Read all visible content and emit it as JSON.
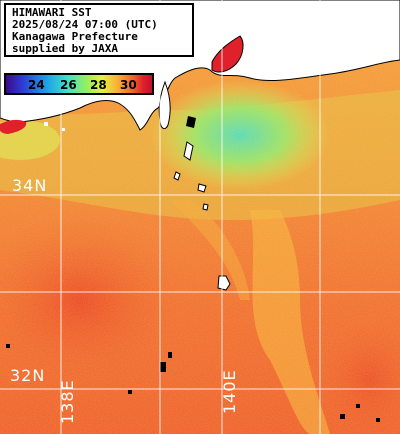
{
  "info": {
    "line1": "HIMAWARI SST",
    "line2": "2025/08/24 07:00 (UTC)",
    "line3": "Kanagawa Prefecture",
    "line4": "supplied by JAXA"
  },
  "colorbar": {
    "ticks": [
      "24",
      "26",
      "28",
      "30"
    ],
    "colors": [
      "#3a0a8a",
      "#2d3fd6",
      "#1fa0e8",
      "#3fe0c8",
      "#9af05a",
      "#e8f040",
      "#f6b23a",
      "#f26a2a",
      "#e0202a",
      "#c01030"
    ]
  },
  "grid": {
    "lat_labels": [
      "34N",
      "32N"
    ],
    "lon_labels": [
      "138E",
      "140E"
    ]
  },
  "palette": {
    "land": "#ffffff",
    "coastline": "#000000",
    "warm_sea": "#f06a2c",
    "mid_sea": "#f6b23a",
    "cool_sea": "#9af05a",
    "coldest_coast": "#3fe0c8",
    "hot_spot": "#e0202a"
  }
}
